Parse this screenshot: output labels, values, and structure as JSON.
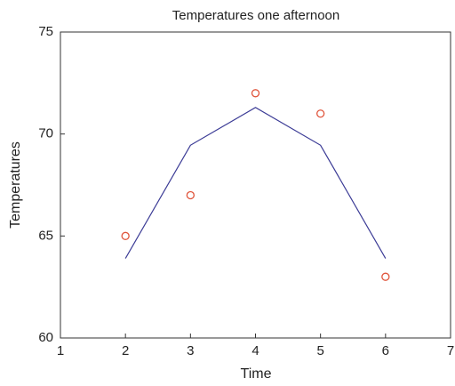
{
  "chart_data": {
    "type": "scatter",
    "title": "Temperatures one afternoon",
    "x_label": "Time",
    "y_label": "Temperatures",
    "x": [
      2,
      3,
      4,
      5,
      6
    ],
    "series": [
      {
        "type": "line",
        "color": "#3c3c96",
        "values": [
          63.9,
          69.45,
          71.3,
          69.45,
          63.9
        ]
      },
      {
        "type": "scatter",
        "color": "#e0553c",
        "values": [
          65,
          67,
          72,
          71,
          63
        ]
      }
    ],
    "xlim": [
      1,
      7
    ],
    "xticks": [
      1,
      2,
      3,
      4,
      5,
      6,
      7
    ],
    "ylim": [
      60,
      75
    ],
    "yticks": [
      60,
      65,
      70,
      75
    ],
    "grid": false
  }
}
